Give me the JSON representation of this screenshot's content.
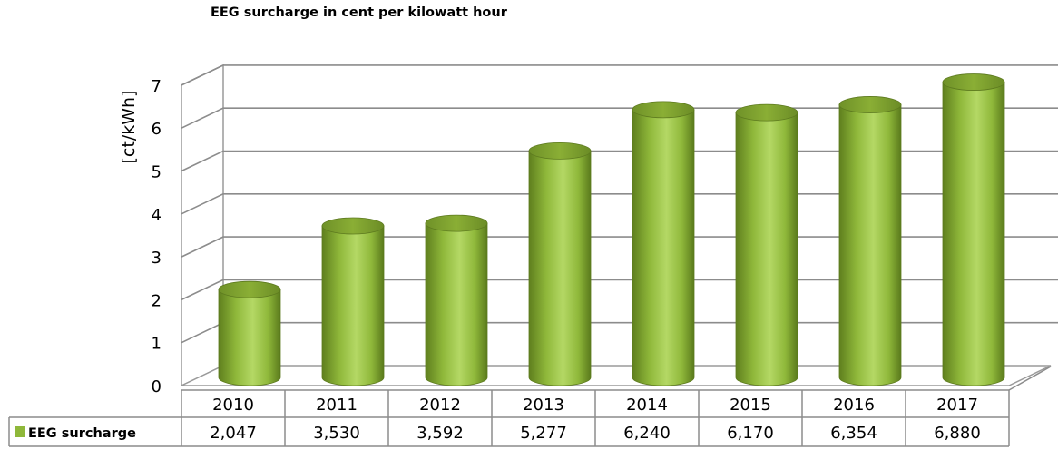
{
  "chart_data": {
    "type": "bar",
    "title": "EEG surcharge in cent per kilowatt hour",
    "ylabel": "[ct/kWh]",
    "xlabel": "",
    "ylim": [
      0,
      7
    ],
    "y_ticks": [
      "0",
      "1",
      "2",
      "3",
      "4",
      "5",
      "6",
      "7"
    ],
    "categories": [
      "2010",
      "2011",
      "2012",
      "2013",
      "2014",
      "2015",
      "2016",
      "2017"
    ],
    "series": [
      {
        "name": "EEG surcharge",
        "values": [
          2.047,
          3.53,
          3.592,
          5.277,
          6.24,
          6.17,
          6.354,
          6.88
        ],
        "value_labels": [
          "2,047",
          "3,530",
          "3,592",
          "5,277",
          "6,240",
          "6,170",
          "6,354",
          "6,880"
        ],
        "color": "#8fb83a"
      }
    ],
    "grid": true,
    "legend": "data-table",
    "style": "3d-cylinder"
  }
}
